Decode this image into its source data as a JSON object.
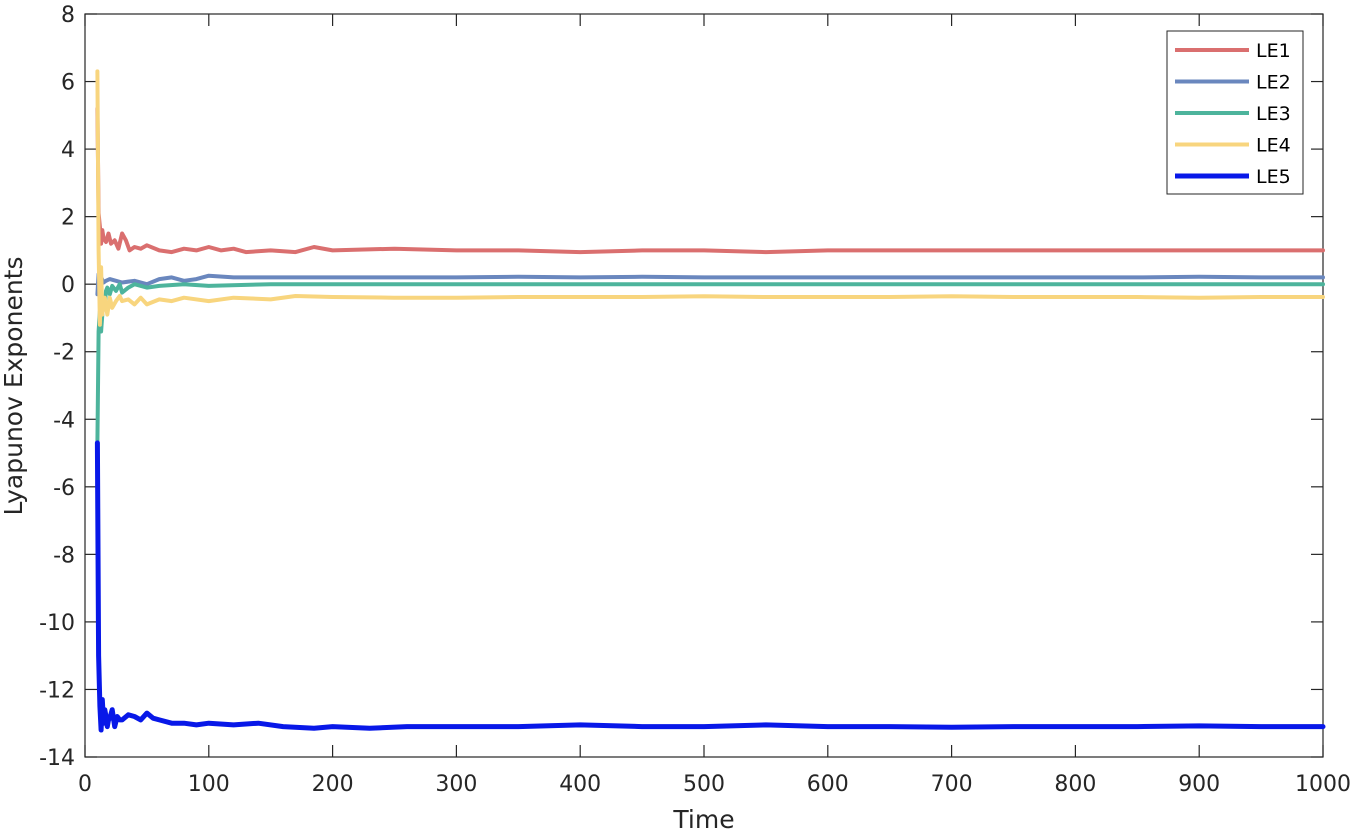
{
  "chart_data": {
    "type": "line",
    "title": "",
    "xlabel": "Time",
    "ylabel": "Lyapunov Exponents",
    "xlim": [
      0,
      1000
    ],
    "ylim": [
      -14,
      8
    ],
    "xticks": [
      0,
      100,
      200,
      300,
      400,
      500,
      600,
      700,
      800,
      900,
      1000
    ],
    "yticks": [
      -14,
      -12,
      -10,
      -8,
      -6,
      -4,
      -2,
      0,
      2,
      4,
      6,
      8
    ],
    "grid": false,
    "legend_position": "top-right",
    "series": [
      {
        "name": "LE1",
        "color": "#DA6F6F",
        "x": [
          10,
          11,
          12,
          13,
          14,
          15,
          17,
          19,
          21,
          24,
          27,
          30,
          33,
          36,
          40,
          45,
          50,
          60,
          70,
          80,
          90,
          100,
          110,
          120,
          130,
          150,
          170,
          185,
          200,
          250,
          300,
          350,
          400,
          450,
          500,
          550,
          600,
          650,
          700,
          750,
          800,
          850,
          900,
          950,
          1000
        ],
        "y": [
          5.2,
          2.1,
          1.7,
          1.2,
          1.6,
          1.35,
          1.25,
          1.5,
          1.2,
          1.3,
          1.05,
          1.5,
          1.3,
          1.0,
          1.1,
          1.05,
          1.15,
          1.0,
          0.95,
          1.05,
          1.0,
          1.1,
          1.0,
          1.05,
          0.95,
          1.0,
          0.95,
          1.1,
          1.0,
          1.05,
          1.0,
          1.0,
          0.95,
          1.0,
          1.0,
          0.95,
          1.0,
          1.0,
          1.0,
          1.0,
          1.0,
          1.0,
          1.0,
          1.0,
          1.0
        ]
      },
      {
        "name": "LE2",
        "color": "#6A87BE",
        "x": [
          10,
          11,
          12,
          13,
          15,
          17,
          20,
          25,
          30,
          40,
          50,
          60,
          70,
          80,
          90,
          100,
          120,
          150,
          200,
          250,
          300,
          350,
          400,
          450,
          500,
          550,
          600,
          650,
          700,
          750,
          800,
          850,
          900,
          950,
          1000
        ],
        "y": [
          -0.3,
          0.3,
          0.1,
          0.2,
          0.05,
          0.1,
          0.15,
          0.1,
          0.05,
          0.1,
          0.0,
          0.15,
          0.2,
          0.1,
          0.15,
          0.25,
          0.2,
          0.2,
          0.2,
          0.2,
          0.2,
          0.22,
          0.2,
          0.22,
          0.2,
          0.2,
          0.2,
          0.2,
          0.2,
          0.2,
          0.2,
          0.2,
          0.22,
          0.2,
          0.2
        ]
      },
      {
        "name": "LE3",
        "color": "#4DB49C",
        "x": [
          10,
          11,
          12,
          13,
          14,
          15,
          16,
          17,
          18,
          20,
          22,
          25,
          28,
          30,
          35,
          40,
          50,
          60,
          80,
          100,
          150,
          200,
          250,
          300,
          350,
          400,
          450,
          500,
          550,
          600,
          650,
          700,
          750,
          800,
          850,
          900,
          950,
          1000
        ],
        "y": [
          -4.7,
          -1.4,
          -0.8,
          -1.4,
          -0.9,
          -0.4,
          -0.6,
          -0.2,
          -0.1,
          -0.3,
          -0.05,
          -0.2,
          0.0,
          -0.25,
          -0.1,
          0.0,
          -0.1,
          -0.05,
          0.0,
          -0.05,
          0.0,
          0.0,
          0.0,
          0.0,
          0.0,
          0.0,
          0.0,
          0.0,
          0.0,
          0.0,
          0.0,
          0.0,
          0.0,
          0.0,
          0.0,
          0.0,
          0.0,
          0.0
        ]
      },
      {
        "name": "LE4",
        "color": "#F8D57E",
        "x": [
          10,
          11,
          12,
          13,
          14,
          15,
          16,
          18,
          20,
          22,
          25,
          28,
          30,
          35,
          40,
          45,
          50,
          60,
          70,
          80,
          100,
          120,
          150,
          170,
          200,
          250,
          300,
          350,
          400,
          450,
          500,
          550,
          600,
          650,
          700,
          750,
          800,
          850,
          900,
          950,
          1000
        ],
        "y": [
          6.3,
          1.0,
          -1.2,
          0.5,
          -0.9,
          -0.6,
          -0.4,
          -0.9,
          -0.4,
          -0.7,
          -0.5,
          -0.35,
          -0.5,
          -0.45,
          -0.6,
          -0.4,
          -0.6,
          -0.45,
          -0.5,
          -0.4,
          -0.5,
          -0.4,
          -0.45,
          -0.35,
          -0.38,
          -0.4,
          -0.4,
          -0.38,
          -0.38,
          -0.38,
          -0.36,
          -0.38,
          -0.38,
          -0.38,
          -0.36,
          -0.38,
          -0.38,
          -0.38,
          -0.4,
          -0.38,
          -0.38
        ]
      },
      {
        "name": "LE5",
        "color": "#0818E8",
        "x": [
          10,
          11,
          12,
          13,
          14,
          15,
          16,
          17,
          18,
          19,
          20,
          22,
          24,
          26,
          28,
          30,
          35,
          40,
          45,
          50,
          55,
          60,
          70,
          80,
          90,
          100,
          120,
          140,
          160,
          185,
          200,
          230,
          260,
          300,
          350,
          400,
          450,
          500,
          550,
          600,
          650,
          700,
          750,
          800,
          850,
          900,
          950,
          1000
        ],
        "y": [
          -4.7,
          -11.0,
          -12.5,
          -13.2,
          -12.3,
          -13.0,
          -12.6,
          -12.8,
          -13.1,
          -12.9,
          -12.85,
          -12.6,
          -13.1,
          -12.8,
          -12.9,
          -12.9,
          -12.75,
          -12.8,
          -12.9,
          -12.7,
          -12.85,
          -12.9,
          -13.0,
          -13.0,
          -13.05,
          -13.0,
          -13.05,
          -13.0,
          -13.1,
          -13.15,
          -13.1,
          -13.15,
          -13.1,
          -13.1,
          -13.1,
          -13.05,
          -13.1,
          -13.1,
          -13.05,
          -13.1,
          -13.1,
          -13.12,
          -13.1,
          -13.1,
          -13.1,
          -13.08,
          -13.1,
          -13.1
        ]
      }
    ]
  }
}
